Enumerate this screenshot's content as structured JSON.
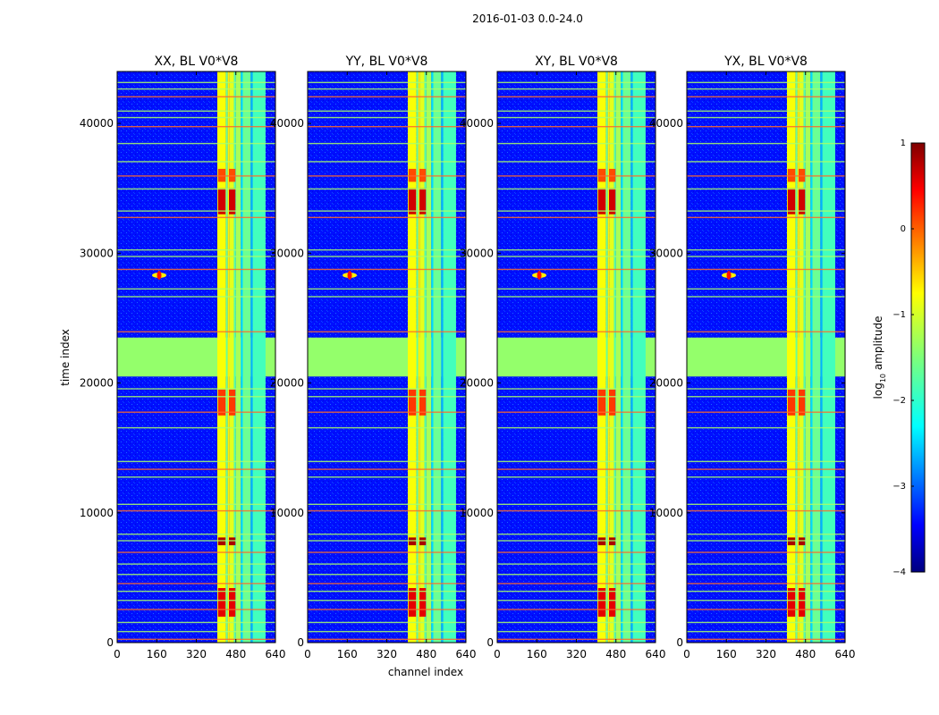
{
  "figure": {
    "suptitle": "2016-01-03 0.0-24.0",
    "xlabel": "channel index",
    "ylabel": "time index"
  },
  "chart_data": {
    "type": "heatmap",
    "panels": [
      {
        "title": "XX, BL V0*V8"
      },
      {
        "title": "YY, BL V0*V8"
      },
      {
        "title": "XY, BL V0*V8"
      },
      {
        "title": "YX, BL V0*V8"
      }
    ],
    "x_ticks": [
      "0",
      "160",
      "320",
      "480",
      "640"
    ],
    "x_tick_values": [
      0,
      160,
      320,
      480,
      640
    ],
    "xlim": [
      0,
      640
    ],
    "y_ticks": [
      "0",
      "10000",
      "20000",
      "30000",
      "40000"
    ],
    "y_tick_values": [
      0,
      10000,
      20000,
      30000,
      40000
    ],
    "ylim": [
      0,
      44000
    ],
    "colorbar": {
      "label": "log10 amplitude",
      "label_main": "log",
      "label_sub": "10",
      "label_rest": " amplitude",
      "ticks": [
        "1",
        "0",
        "−1",
        "−2",
        "−3",
        "−4"
      ],
      "tick_values": [
        1,
        0,
        -1,
        -2,
        -3,
        -4
      ],
      "range": [
        -4,
        1
      ],
      "colormap": "jet"
    },
    "background_level": -3.3,
    "rfi_channel_bands": [
      {
        "start": 405,
        "end": 440,
        "level": -0.9
      },
      {
        "start": 440,
        "end": 447,
        "level": -1.6
      },
      {
        "start": 447,
        "end": 455,
        "level": -0.8
      },
      {
        "start": 455,
        "end": 472,
        "level": -1.0
      },
      {
        "start": 472,
        "end": 480,
        "level": -1.7
      },
      {
        "start": 480,
        "end": 500,
        "level": -1.3
      },
      {
        "start": 500,
        "end": 508,
        "level": -2.3
      },
      {
        "start": 508,
        "end": 540,
        "level": -1.6
      },
      {
        "start": 540,
        "end": 548,
        "level": -2.5
      },
      {
        "start": 548,
        "end": 600,
        "level": -1.8
      }
    ],
    "flagged_time_band": {
      "start": 20500,
      "end": 23500,
      "level": -1.4
    },
    "hot_time_spans": [
      {
        "start": 2000,
        "end": 4200,
        "level": 0.5
      },
      {
        "start": 7500,
        "end": 8100,
        "level": 0.8
      },
      {
        "start": 17500,
        "end": 19500,
        "level": 0.1
      },
      {
        "start": 33000,
        "end": 35000,
        "level": 0.6
      },
      {
        "start": 35500,
        "end": 36500,
        "level": 0.0
      }
    ],
    "rfi_spot": {
      "channel": 170,
      "time": 28300,
      "level": -0.8
    },
    "horizontal_lines": [
      300,
      900,
      1600,
      2600,
      3300,
      4000,
      4600,
      5300,
      6100,
      7000,
      7900,
      8400,
      10200,
      10700,
      12800,
      13400,
      14000,
      16600,
      17800,
      19000,
      19600,
      24000,
      26700,
      27300,
      28800,
      29800,
      30300,
      32800,
      33300,
      35000,
      36000,
      37100,
      38500,
      39800,
      40500,
      41000,
      42100,
      42700,
      43200
    ]
  }
}
